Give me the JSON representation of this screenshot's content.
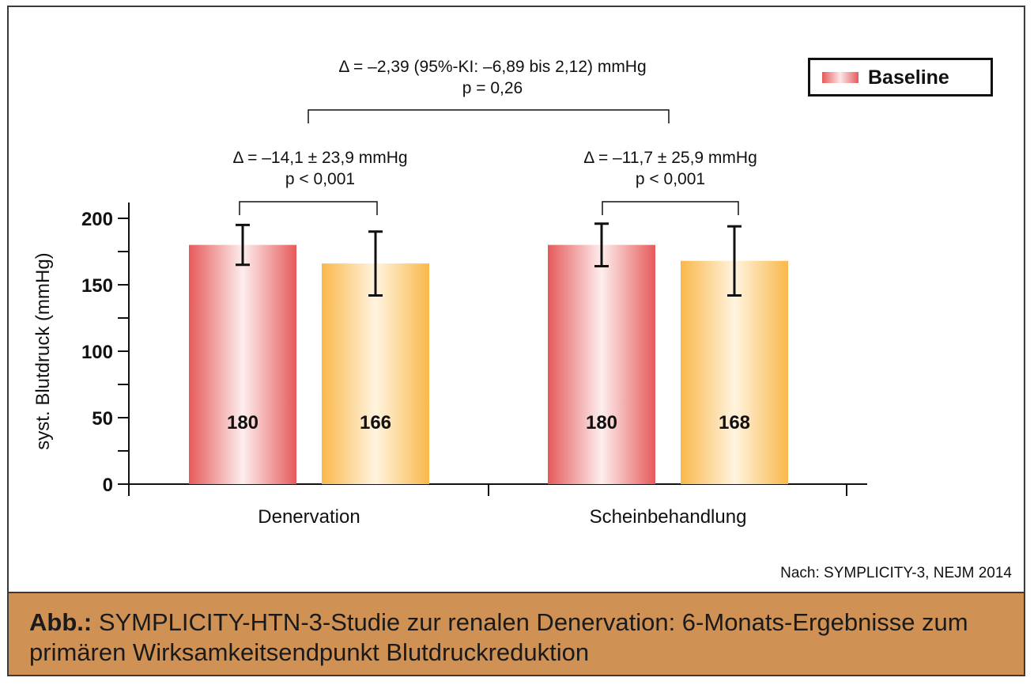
{
  "chart_data": {
    "type": "bar",
    "categories": [
      "Denervation",
      "Scheinbehandlung"
    ],
    "series": [
      {
        "name": "Baseline",
        "values": [
          180,
          180
        ],
        "error_plus": [
          15,
          16
        ],
        "error_minus": [
          15,
          16
        ],
        "color": "#e65a5a"
      },
      {
        "values": [
          166,
          168
        ],
        "error_plus": [
          24,
          26
        ],
        "error_minus": [
          24,
          26
        ],
        "color": "#f9b84a"
      }
    ],
    "ylabel": "syst. Blutdruck (mmHg)",
    "yticks": [
      0,
      50,
      100,
      150,
      200
    ],
    "ylim": [
      0,
      200
    ],
    "legend_position": "top-right",
    "annotations": {
      "overall_line1": "Δ = –2,39 (95%-KI: –6,89 bis 2,12) mmHg",
      "overall_line2": "p = 0,26",
      "group1_line1": "Δ = –14,1 ± 23,9 mmHg",
      "group1_line2": "p < 0,001",
      "group2_line1": "Δ = –11,7 ± 25,9 mmHg",
      "group2_line2": "p < 0,001"
    }
  },
  "legend": {
    "label": "Baseline"
  },
  "source": "Nach: SYMPLICITY-3, NEJM 2014",
  "caption": {
    "bold": "Abb.:",
    "text": " SYMPLICITY-HTN-3-Studie zur renalen Denervation: 6-Monats-Ergebnisse zum primären Wirksamkeitsendpunkt Blutdruckreduktion"
  }
}
